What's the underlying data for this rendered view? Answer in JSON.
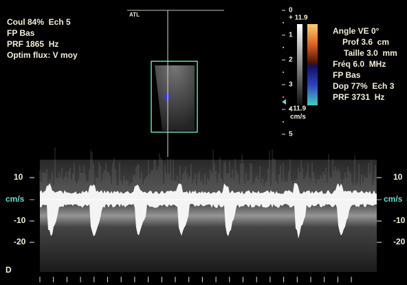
{
  "logo": "ATL",
  "left_panel": [
    "Coul 84%  Ech 5",
    "FP Bas",
    "PRF 1865  Hz",
    "Optim flux: V moy"
  ],
  "depth_scale": [
    "0",
    "1",
    "2",
    "3",
    "4",
    "5"
  ],
  "color_scale": {
    "top": "+ 11.9",
    "bottom": "- 11.9",
    "unit": "cm/s"
  },
  "right_panel": [
    "Angle VE 0°",
    "Prof 3.6  cm",
    "Taille 3.0  mm",
    "Fréq 6.0  MHz",
    "FP Bas",
    "Dop 77%  Ech 3",
    "PRF 3731  Hz"
  ],
  "doppler_scale": [
    "10",
    "cm/s",
    "-10",
    "-20"
  ],
  "doppler_mode": "D"
}
